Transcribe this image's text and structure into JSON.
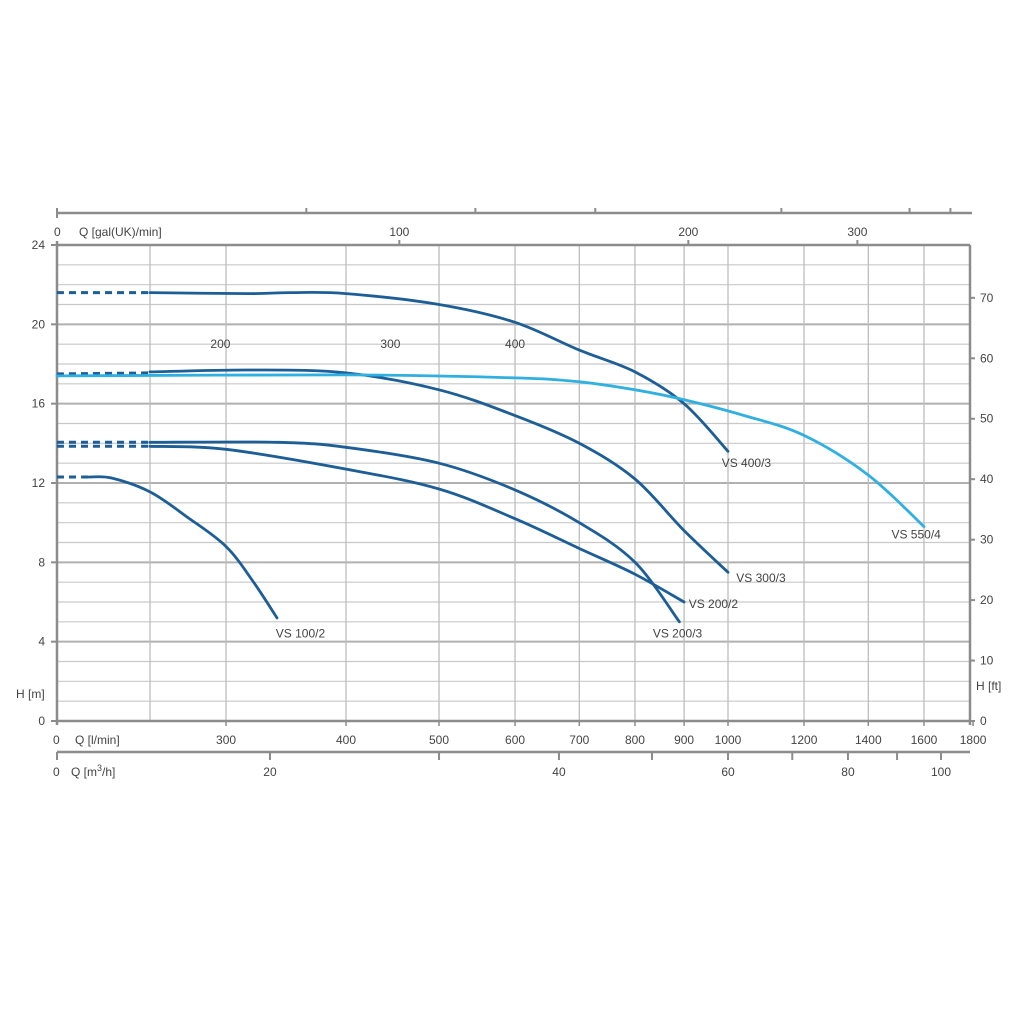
{
  "chart_data": {
    "type": "line",
    "title": "",
    "x_scale": "log",
    "xlim": [
      200,
      1800
    ],
    "ylim": [
      0,
      24
    ],
    "grid": true,
    "x_axis_lmin": {
      "label": "Q [l/min]",
      "origin_label": "0",
      "ticks": [
        300,
        400,
        500,
        600,
        700,
        800,
        900,
        1000,
        1200,
        1400,
        1600,
        1800
      ],
      "gridlines": [
        250,
        300,
        400,
        500,
        600,
        700,
        800,
        900,
        1000,
        1200,
        1400,
        1600
      ]
    },
    "x_axis_m3h": {
      "label_prefix": "Q [m",
      "label_sup": "3",
      "label_suffix": "/h]",
      "origin_label": "0",
      "ticks": [
        20,
        40,
        60,
        80,
        100
      ],
      "minor_ticks": [
        30,
        50,
        70,
        90
      ]
    },
    "x_axis_gal": {
      "label": "Q [gal(UK)/min]",
      "origin_label": "0",
      "ticks": [
        100,
        200,
        300
      ],
      "minor_ticks": [
        80,
        120,
        160,
        250,
        340,
        375
      ]
    },
    "y_axis_m": {
      "label": "H [m]",
      "ticks": [
        0,
        4,
        8,
        12,
        16,
        20,
        24
      ]
    },
    "y_axis_ft": {
      "label": "H [ft]",
      "ticks": [
        0,
        10,
        20,
        30,
        40,
        50,
        60,
        70
      ]
    },
    "inner_labels": [
      {
        "text": "200",
        "x": 296,
        "y": 18.8
      },
      {
        "text": "300",
        "x": 445,
        "y": 18.8
      },
      {
        "text": "400",
        "x": 600,
        "y": 18.8
      }
    ],
    "colors": {
      "dark": "#1d5e96",
      "light": "#2fb0e0",
      "grid": "#c9c9c9",
      "axis": "#8c8c8c"
    },
    "series": [
      {
        "name": "VS 400/3",
        "color": "dark",
        "dashed": [
          [
            200,
            21.6
          ],
          [
            250,
            21.6
          ]
        ],
        "points": [
          [
            250,
            21.6
          ],
          [
            318,
            21.55
          ],
          [
            350,
            21.6
          ],
          [
            400,
            21.55
          ],
          [
            500,
            21.0
          ],
          [
            600,
            20.1
          ],
          [
            700,
            18.7
          ],
          [
            800,
            17.6
          ],
          [
            900,
            16.0
          ],
          [
            1000,
            13.6
          ]
        ],
        "label_at": [
          985,
          12.8
        ]
      },
      {
        "name": "VS 300/3",
        "color": "dark",
        "dashed": [
          [
            200,
            17.5
          ],
          [
            250,
            17.55
          ]
        ],
        "points": [
          [
            250,
            17.6
          ],
          [
            318,
            17.7
          ],
          [
            400,
            17.55
          ],
          [
            500,
            16.7
          ],
          [
            600,
            15.4
          ],
          [
            700,
            14.0
          ],
          [
            800,
            12.2
          ],
          [
            900,
            9.6
          ],
          [
            1000,
            7.5
          ]
        ],
        "label_at": [
          1020,
          7.0
        ]
      },
      {
        "name": "VS 550/4",
        "color": "light",
        "dashed": null,
        "points": [
          [
            200,
            17.4
          ],
          [
            400,
            17.45
          ],
          [
            600,
            17.3
          ],
          [
            700,
            17.1
          ],
          [
            800,
            16.7
          ],
          [
            900,
            16.2
          ],
          [
            1040,
            15.4
          ],
          [
            1200,
            14.4
          ],
          [
            1400,
            12.4
          ],
          [
            1600,
            9.8
          ]
        ],
        "label_at": [
          1480,
          9.2
        ]
      },
      {
        "name": "VS 200/2",
        "color": "dark",
        "dashed": [
          [
            200,
            13.85
          ],
          [
            250,
            13.85
          ]
        ],
        "points": [
          [
            250,
            13.85
          ],
          [
            300,
            13.7
          ],
          [
            400,
            12.7
          ],
          [
            500,
            11.7
          ],
          [
            600,
            10.2
          ],
          [
            700,
            8.7
          ],
          [
            800,
            7.4
          ],
          [
            900,
            6.0
          ]
        ],
        "label_at": [
          910,
          5.7
        ]
      },
      {
        "name": "VS 200/3",
        "color": "dark",
        "dashed": [
          [
            200,
            14.05
          ],
          [
            250,
            14.05
          ]
        ],
        "points": [
          [
            250,
            14.05
          ],
          [
            340,
            14.05
          ],
          [
            400,
            13.8
          ],
          [
            500,
            13.0
          ],
          [
            600,
            11.65
          ],
          [
            700,
            10.0
          ],
          [
            800,
            8.0
          ],
          [
            890,
            5.0
          ]
        ],
        "label_at": [
          835,
          4.2
        ]
      },
      {
        "name": "VS 100/2",
        "color": "dark",
        "dashed": [
          [
            200,
            12.3
          ],
          [
            216,
            12.3
          ]
        ],
        "points": [
          [
            216,
            12.3
          ],
          [
            228,
            12.25
          ],
          [
            250,
            11.55
          ],
          [
            273,
            10.3
          ],
          [
            300,
            8.8
          ],
          [
            321,
            6.95
          ],
          [
            339,
            5.2
          ]
        ],
        "label_at": [
          338,
          4.2
        ]
      }
    ]
  }
}
